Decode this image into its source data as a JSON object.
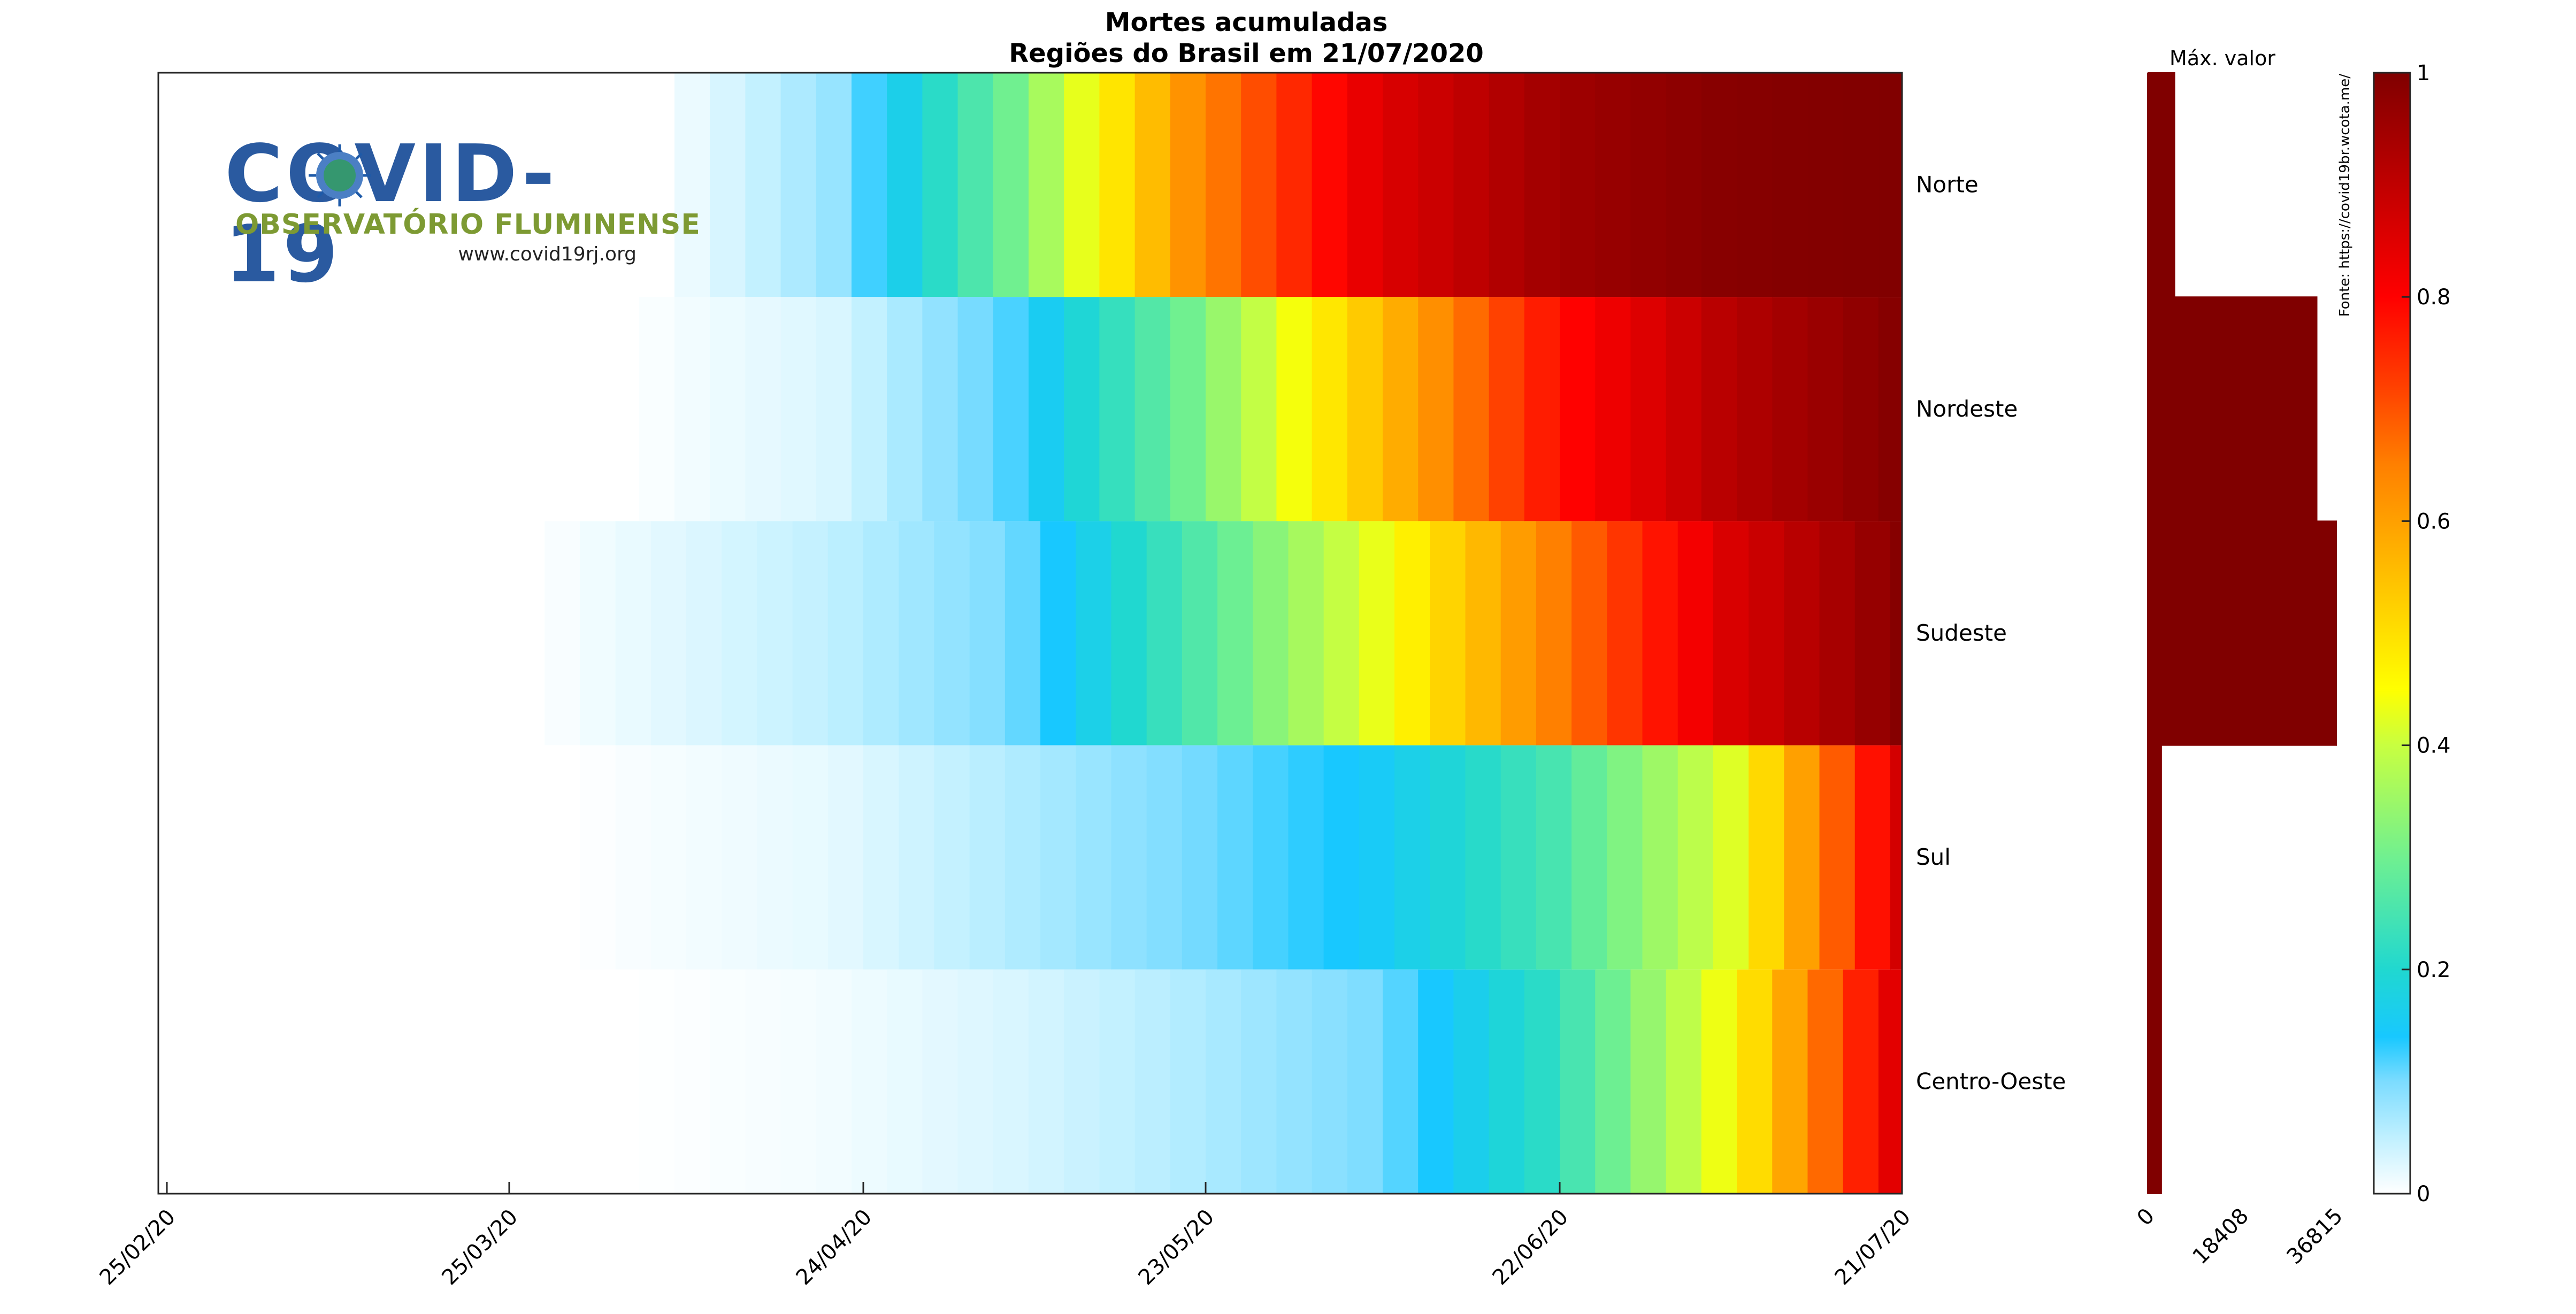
{
  "chart_data": {
    "type": "heatmap",
    "title": "Mortes acumuladas",
    "subtitle": "Regiões do Brasil em 21/07/2020",
    "rows": [
      "Norte",
      "Nordeste",
      "Sudeste",
      "Sul",
      "Centro-Oeste"
    ],
    "x_tick_labels": [
      "25/02/20",
      "25/03/20",
      "24/04/20",
      "23/05/20",
      "22/06/20",
      "21/07/20"
    ],
    "x_start": "2020-02-25",
    "x_end": "2020-07-21",
    "first_death_date": {
      "Norte": "2020-04-05",
      "Nordeste": "2020-04-02",
      "Sudeste": "2020-03-25",
      "Sul": "2020-03-28",
      "Centro-Oeste": "2020-04-02"
    },
    "color_at_date": {
      "dates": [
        "2020-04-20",
        "2020-05-05",
        "2020-05-20",
        "2020-06-05",
        "2020-06-20",
        "2020-07-05",
        "2020-07-21"
      ],
      "Norte": [
        0.08,
        0.3,
        0.62,
        0.85,
        0.95,
        0.99,
        1.0
      ],
      "Nordeste": [
        0.03,
        0.12,
        0.3,
        0.55,
        0.78,
        0.92,
        1.0
      ],
      "Sudeste": [
        0.05,
        0.1,
        0.25,
        0.43,
        0.65,
        0.86,
        1.0
      ],
      "Sul": [
        0.02,
        0.06,
        0.1,
        0.15,
        0.25,
        0.42,
        0.9
      ],
      "Centro-Oeste": [
        0.01,
        0.03,
        0.06,
        0.1,
        0.22,
        0.45,
        0.9
      ]
    },
    "colorbar": {
      "ylim": [
        0,
        1
      ],
      "ticks": [
        "0",
        "0.2",
        "0.4",
        "0.6",
        "0.8",
        "1"
      ]
    },
    "side_bar": {
      "title": "Máx. valor",
      "xlim": [
        0,
        36815
      ],
      "tick_labels": [
        "0",
        "18408",
        "36815"
      ],
      "values": {
        "Norte": 5200,
        "Nordeste": 33000,
        "Sudeste": 36815,
        "Sul": 2600,
        "Centro-Oeste": 2600
      }
    },
    "source": "Fonte: https://covid19br.wcota.me/",
    "grid": false
  },
  "logo": {
    "title": "COVID-19",
    "subtitle": "OBSERVATÓRIO FLUMINENSE",
    "url": "www.covid19rj.org"
  },
  "colors": {
    "bar": "#800000",
    "frame": "#262626"
  }
}
